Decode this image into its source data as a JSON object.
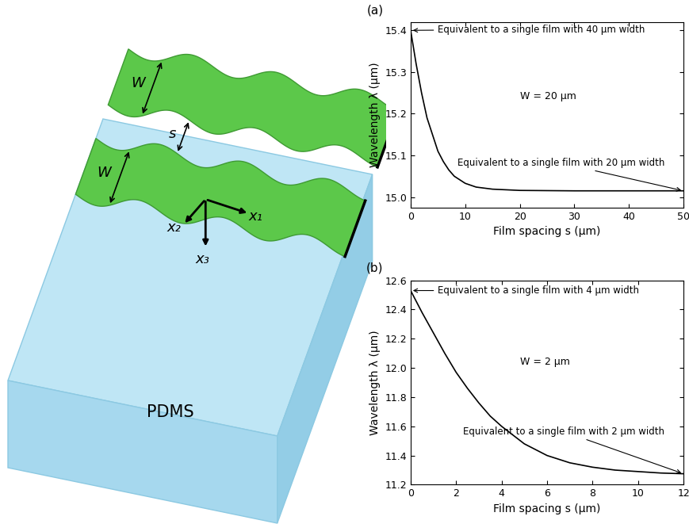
{
  "chart_data": [
    {
      "type": "line",
      "title": "(a)",
      "x_label": "Film spacing s (μm)",
      "y_label": "Wavelength λ (μm)",
      "x": [
        0,
        1,
        2,
        3,
        4,
        5,
        6,
        7,
        8,
        10,
        12,
        15,
        20,
        30,
        40,
        50
      ],
      "values": [
        15.4,
        15.32,
        15.25,
        15.19,
        15.15,
        15.11,
        15.085,
        15.065,
        15.05,
        15.033,
        15.024,
        15.019,
        15.016,
        15.015,
        15.015,
        15.015
      ],
      "color": "#000000",
      "xlim": [
        0,
        50
      ],
      "xticks": [
        0,
        10,
        20,
        30,
        40,
        50
      ],
      "ylim": [
        14.975,
        15.42
      ],
      "yticks": [
        15.0,
        15.1,
        15.2,
        15.3,
        15.4
      ],
      "annotations": [
        "Equivalent to a single film with 40 μm width",
        "W = 20 μm",
        "Equivalent to a single film with 20 μm width"
      ]
    },
    {
      "type": "line",
      "title": "(b)",
      "x_label": "Film spacing s (μm)",
      "y_label": "Wavelength λ (μm)",
      "x": [
        0,
        0.5,
        1,
        1.5,
        2,
        2.5,
        3,
        3.5,
        4,
        5,
        6,
        7,
        8,
        9,
        10,
        11,
        12
      ],
      "values": [
        12.53,
        12.38,
        12.24,
        12.1,
        11.97,
        11.86,
        11.76,
        11.67,
        11.6,
        11.48,
        11.4,
        11.35,
        11.32,
        11.3,
        11.29,
        11.28,
        11.275
      ],
      "color": "#000000",
      "xlim": [
        0,
        12
      ],
      "xticks": [
        0,
        2,
        4,
        6,
        8,
        10,
        12
      ],
      "ylim": [
        11.2,
        12.6
      ],
      "yticks": [
        11.2,
        11.4,
        11.6,
        11.8,
        12.0,
        12.2,
        12.4,
        12.6
      ],
      "annotations": [
        "Equivalent to a single film with 4 μm width",
        "W = 2 μm",
        "Equivalent to a single film with 2 μm width"
      ]
    }
  ],
  "schematic": {
    "width_label": "W",
    "spacing_label": "s",
    "axis_labels": [
      "x₁",
      "x₂",
      "x₃"
    ],
    "substrate_label": "PDMS"
  }
}
